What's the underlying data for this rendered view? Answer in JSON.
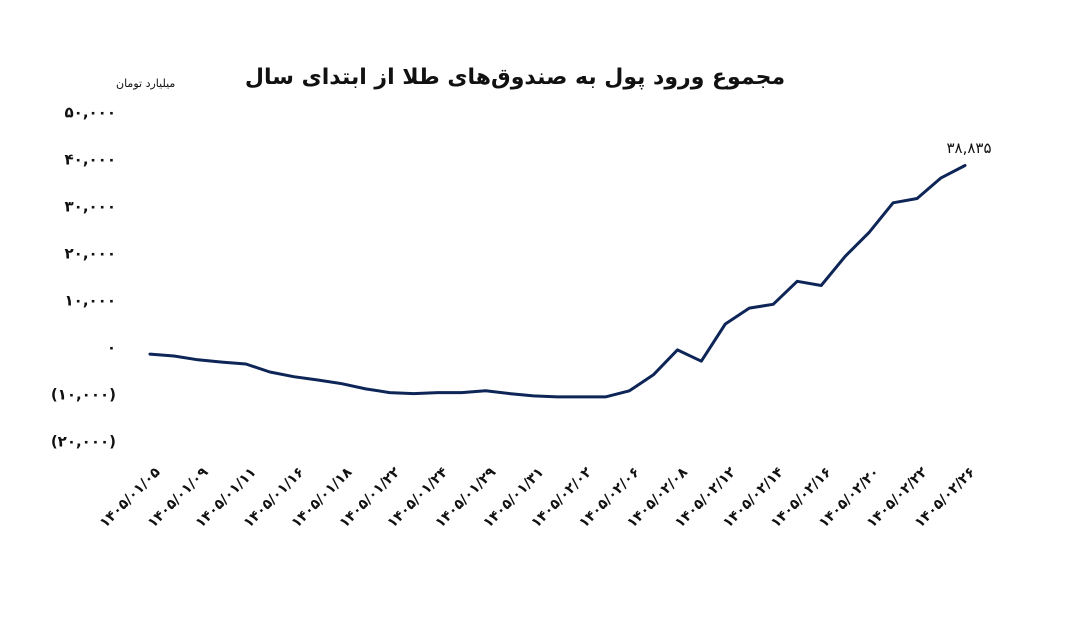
{
  "chart_data": {
    "type": "line",
    "title": "مجموع ورود پول به صندوق‌های طلا از ابتدای سال",
    "y_axis_label": "میلیارد تومان",
    "categories": [
      "۱۴۰۵/۰۱/۰۵",
      null,
      "۱۴۰۵/۰۱/۰۹",
      null,
      "۱۴۰۵/۰۱/۱۱",
      null,
      "۱۴۰۵/۰۱/۱۶",
      null,
      "۱۴۰۵/۰۱/۱۸",
      null,
      "۱۴۰۵/۰۱/۲۲",
      null,
      "۱۴۰۵/۰۱/۲۴",
      null,
      "۱۴۰۵/۰۱/۲۹",
      null,
      "۱۴۰۵/۰۱/۳۱",
      null,
      "۱۴۰۵/۰۲/۰۲",
      null,
      "۱۴۰۵/۰۲/۰۶",
      null,
      "۱۴۰۵/۰۲/۰۸",
      null,
      "۱۴۰۵/۰۲/۱۲",
      null,
      "۱۴۰۵/۰۲/۱۴",
      null,
      "۱۴۰۵/۰۲/۱۶",
      null,
      "۱۴۰۵/۰۲/۲۰",
      null,
      "۱۴۰۵/۰۲/۲۲",
      null,
      "۱۴۰۵/۰۲/۲۶"
    ],
    "values": [
      -1300,
      -1700,
      -2500,
      -3000,
      -3400,
      -5100,
      -6100,
      -6800,
      -7600,
      -8700,
      -9500,
      -9700,
      -9500,
      -9500,
      -9100,
      -9700,
      -10200,
      -10400,
      -10400,
      -10400,
      -9100,
      -5700,
      -400,
      -2800,
      5100,
      8500,
      9300,
      14200,
      13300,
      19500,
      24600,
      30900,
      31800,
      36200,
      38835
    ],
    "value_labels": [
      null,
      null,
      null,
      null,
      null,
      null,
      null,
      null,
      null,
      null,
      null,
      null,
      null,
      null,
      null,
      null,
      null,
      null,
      null,
      null,
      null,
      null,
      null,
      null,
      null,
      null,
      null,
      null,
      null,
      null,
      null,
      null,
      null,
      null,
      "۳۸,۸۳۵"
    ],
    "color": "#0e2557",
    "ylim": [
      -20000,
      50000
    ],
    "yticks": [
      {
        "value": -20000,
        "label": "(۲۰,۰۰۰)"
      },
      {
        "value": -10000,
        "label": "(۱۰,۰۰۰)"
      },
      {
        "value": 0,
        "label": "۰"
      },
      {
        "value": 10000,
        "label": "۱۰,۰۰۰"
      },
      {
        "value": 20000,
        "label": "۲۰,۰۰۰"
      },
      {
        "value": 30000,
        "label": "۳۰,۰۰۰"
      },
      {
        "value": 40000,
        "label": "۴۰,۰۰۰"
      },
      {
        "value": 50000,
        "label": "۵۰,۰۰۰"
      }
    ],
    "grid": false
  }
}
